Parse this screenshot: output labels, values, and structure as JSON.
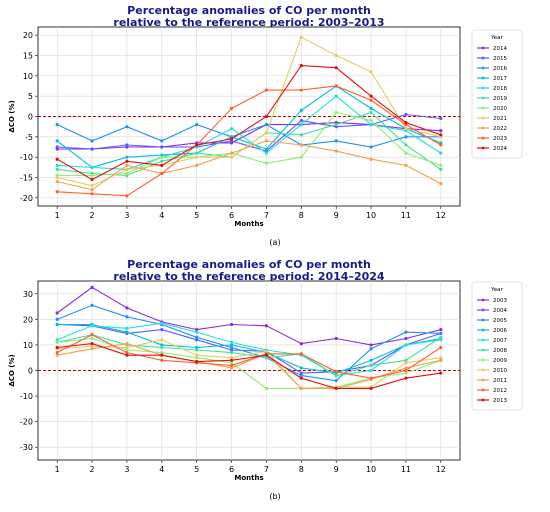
{
  "chart_data": [
    {
      "type": "line",
      "title": "Percentage anomalies of CO per month relative to the reference period: 2003–2013",
      "title_lines": [
        "Percentage anomalies of CO per month",
        "relative to the reference period: 2003–2013"
      ],
      "xlabel": "Months",
      "ylabel": "ΔCO (%)",
      "caption": "(a)",
      "legend_title": "Year",
      "legend_position": "right",
      "grid": true,
      "reference_line": 0,
      "ylim": [
        -22,
        22
      ],
      "yticks": [
        -20,
        -15,
        -10,
        -5,
        0,
        5,
        10,
        15,
        20
      ],
      "x": [
        1,
        2,
        3,
        4,
        5,
        6,
        7,
        8,
        9,
        10,
        11,
        12
      ],
      "series": [
        {
          "name": "2014",
          "color": "#8a2be2",
          "values": [
            -8,
            -8,
            -7.5,
            -7.5,
            -6.5,
            -6.5,
            -2,
            -2,
            -1.5,
            -2,
            -3,
            -3.5
          ]
        },
        {
          "name": "2015",
          "color": "#5a5aff",
          "values": [
            -7.5,
            -8,
            -7,
            -7.5,
            -7.5,
            -6,
            -8.5,
            -1,
            -2.5,
            -2,
            0.5,
            -0.5
          ]
        },
        {
          "name": "2016",
          "color": "#1e90ff",
          "values": [
            -2,
            -6,
            -2.5,
            -6,
            -2,
            -5,
            -2,
            -7,
            -6,
            -7.5,
            -5,
            -5
          ]
        },
        {
          "name": "2017",
          "color": "#00bfd8",
          "values": [
            -6,
            -12.5,
            -10,
            -9.5,
            -9,
            -5,
            -8,
            1.5,
            7.5,
            2,
            -3,
            -6.5
          ]
        },
        {
          "name": "2018",
          "color": "#22e0e0",
          "values": [
            -12,
            -12.5,
            -13,
            -10,
            -7.5,
            -3,
            -9,
            -2,
            5,
            -2,
            -3.5,
            -9
          ]
        },
        {
          "name": "2019",
          "color": "#40e0a0",
          "values": [
            -13,
            -14,
            -14.5,
            -11,
            -9,
            -10,
            -4,
            -4.5,
            -2,
            1,
            -7,
            -13
          ]
        },
        {
          "name": "2020",
          "color": "#90ee70",
          "values": [
            -14.5,
            -14.5,
            -14,
            -10,
            -10,
            -9,
            -11.5,
            -10,
            1,
            -1,
            -9,
            -12
          ]
        },
        {
          "name": "2021",
          "color": "#e0d060",
          "values": [
            -15,
            -17,
            -13,
            -12,
            -10,
            -10,
            -4,
            19.5,
            15,
            11,
            -3,
            -5
          ]
        },
        {
          "name": "2022",
          "color": "#f4a050",
          "values": [
            -16,
            -18,
            -12,
            -14,
            -12,
            -9,
            -6,
            -7,
            -8.5,
            -10.5,
            -12,
            -16.5
          ]
        },
        {
          "name": "2023",
          "color": "#ff6030",
          "values": [
            -18.5,
            -19,
            -19.5,
            -14,
            -7,
            2,
            6.5,
            6.5,
            7.5,
            4,
            -2,
            -7
          ]
        },
        {
          "name": "2024",
          "color": "#e01010",
          "values": [
            -10.5,
            -15.5,
            -11,
            -12,
            -7,
            -5.5,
            0,
            12.5,
            12,
            5,
            -1.5,
            -4.5
          ]
        }
      ]
    },
    {
      "type": "line",
      "title": "Percentage anomalies of CO per month relative to the reference period: 2014–2024",
      "title_lines": [
        "Percentage anomalies of CO per month",
        "relative to the reference period: 2014–2024"
      ],
      "xlabel": "Months",
      "ylabel": "ΔCO (%)",
      "caption": "(b)",
      "legend_title": "Year",
      "legend_position": "right",
      "grid": true,
      "reference_line": 0,
      "ylim": [
        -35,
        35
      ],
      "yticks": [
        -30,
        -20,
        -10,
        0,
        10,
        20,
        30
      ],
      "x": [
        1,
        2,
        3,
        4,
        5,
        6,
        7,
        8,
        9,
        10,
        11,
        12
      ],
      "series": [
        {
          "name": "2003",
          "color": "#8a2be2",
          "values": [
            22.5,
            32.5,
            24.5,
            19,
            16,
            18,
            17.5,
            10.5,
            12.5,
            10,
            12.5,
            16
          ]
        },
        {
          "name": "2004",
          "color": "#5a5aff",
          "values": [
            18,
            17.5,
            14.5,
            16,
            12,
            8,
            7.5,
            -1,
            -0.5,
            2,
            10,
            14.5
          ]
        },
        {
          "name": "2005",
          "color": "#1e90ff",
          "values": [
            20,
            25.5,
            21,
            18,
            13,
            9,
            5,
            -2,
            -4,
            8.5,
            15,
            14.5
          ]
        },
        {
          "name": "2006",
          "color": "#00bfd8",
          "values": [
            18,
            18,
            15,
            10,
            9,
            10,
            7,
            1,
            -1,
            4,
            10,
            12.5
          ]
        },
        {
          "name": "2007",
          "color": "#22e0e0",
          "values": [
            12,
            17.5,
            16.5,
            18.5,
            15,
            11,
            8,
            6,
            -2,
            0,
            10,
            12
          ]
        },
        {
          "name": "2008",
          "color": "#40e0a0",
          "values": [
            11,
            14,
            10,
            9,
            8,
            7,
            5,
            6.5,
            -2,
            2,
            4,
            13
          ]
        },
        {
          "name": "2009",
          "color": "#90ee70",
          "values": [
            11,
            12.5,
            8,
            7,
            5,
            3,
            -7,
            -7,
            -6.5,
            -3,
            -1,
            4
          ]
        },
        {
          "name": "2010",
          "color": "#e0d060",
          "values": [
            8.5,
            9.5,
            9,
            12,
            6,
            5,
            7.5,
            -7,
            -6.5,
            -6.5,
            3,
            5
          ]
        },
        {
          "name": "2011",
          "color": "#f4a050",
          "values": [
            6,
            8.5,
            10.5,
            6,
            3.5,
            1,
            6.5,
            -7,
            -7,
            -3.5,
            1,
            4
          ]
        },
        {
          "name": "2012",
          "color": "#ff6030",
          "values": [
            7,
            14,
            7,
            4,
            3,
            2,
            6.5,
            6.5,
            -0.5,
            -3,
            0,
            9
          ]
        },
        {
          "name": "2013",
          "color": "#e01010",
          "values": [
            9,
            10.5,
            6,
            6,
            3.5,
            4,
            6,
            -3,
            -7,
            -7,
            -3,
            -1
          ]
        }
      ]
    }
  ]
}
